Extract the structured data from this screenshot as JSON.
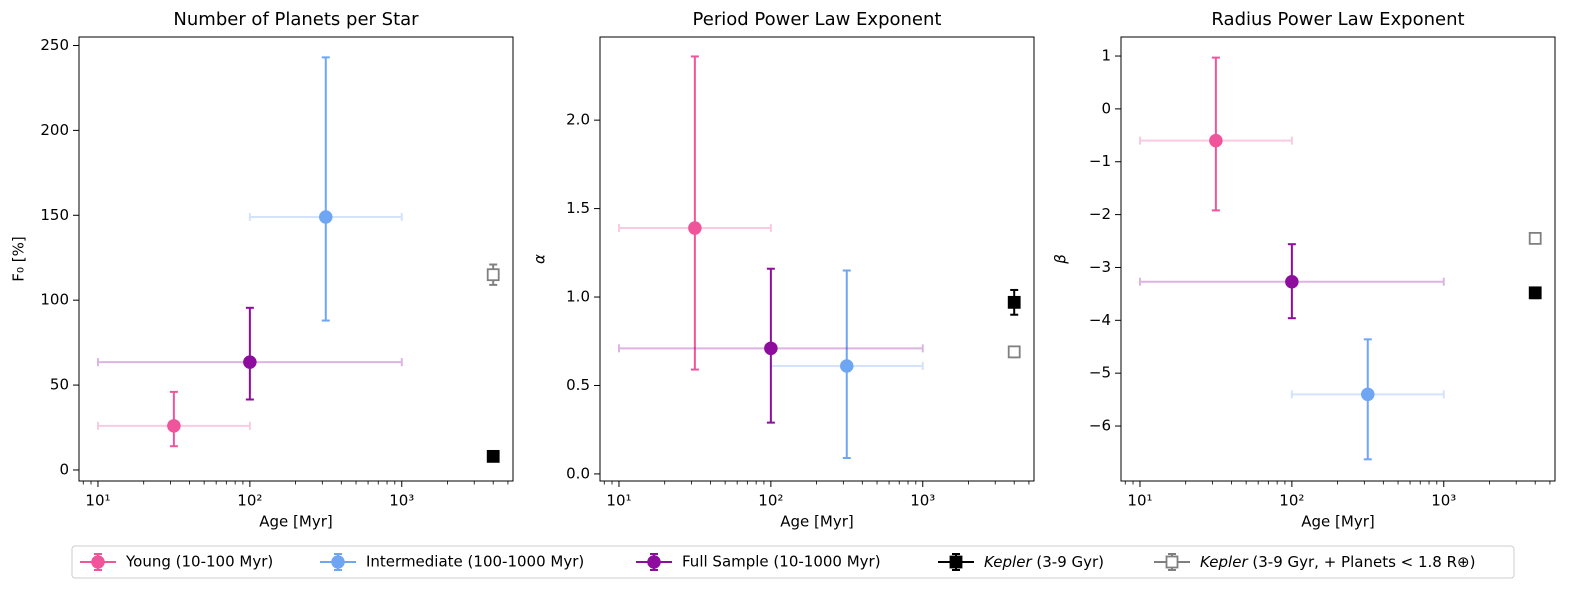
{
  "chart_data": [
    {
      "type": "errorbar",
      "title": "Number of Planets per Star",
      "xlabel": "Age [Myr]",
      "ylabel": "F₀ [%]",
      "xscale": "log",
      "xlim": [
        7.5,
        5400
      ],
      "ylim": [
        -6.5,
        255
      ],
      "xticks": [
        {
          "value": 10,
          "label": "10¹"
        },
        {
          "value": 100,
          "label": "10²"
        },
        {
          "value": 1000,
          "label": "10³"
        }
      ],
      "yticks": [
        0,
        50,
        100,
        150,
        200,
        250
      ],
      "xerr_opacity": 0.3,
      "series": [
        {
          "name": "Young (10-100 Myr)",
          "color": "#f0549b",
          "marker": "circle",
          "filled": true,
          "x": [
            31.6
          ],
          "values": [
            26
          ],
          "yerr_minus": [
            12
          ],
          "yerr_plus": [
            20
          ],
          "xerr_minus": [
            21.6
          ],
          "xerr_plus": [
            68.4
          ]
        },
        {
          "name": "Intermediate (100-1000 Myr)",
          "color": "#6fa6f4",
          "marker": "circle",
          "filled": true,
          "x": [
            316
          ],
          "values": [
            149
          ],
          "yerr_minus": [
            61
          ],
          "yerr_plus": [
            94
          ],
          "xerr_minus": [
            216
          ],
          "xerr_plus": [
            684
          ]
        },
        {
          "name": "Full Sample (10-1000 Myr)",
          "color": "#8e0c9e",
          "marker": "circle",
          "filled": true,
          "x": [
            100
          ],
          "values": [
            63.5
          ],
          "yerr_minus": [
            22
          ],
          "yerr_plus": [
            32
          ],
          "xerr_minus": [
            90
          ],
          "xerr_plus": [
            900
          ]
        },
        {
          "name": "Kepler (3-9 Gyr)",
          "color": "#000000",
          "marker": "square",
          "filled": true,
          "x": [
            4000
          ],
          "values": [
            8
          ],
          "yerr_minus": [
            1
          ],
          "yerr_plus": [
            1
          ]
        },
        {
          "name": "Kepler (3-9 Gyr, + Planets < 1.8 R⊕)",
          "color": "#808080",
          "marker": "square",
          "filled": false,
          "x": [
            4000
          ],
          "values": [
            115
          ],
          "yerr_minus": [
            6
          ],
          "yerr_plus": [
            6
          ]
        }
      ]
    },
    {
      "type": "errorbar",
      "title": "Period Power Law Exponent",
      "xlabel": "Age [Myr]",
      "ylabel": "α",
      "xscale": "log",
      "xlim": [
        7.5,
        5400
      ],
      "ylim": [
        -0.04,
        2.47
      ],
      "xticks": [
        {
          "value": 10,
          "label": "10¹"
        },
        {
          "value": 100,
          "label": "10²"
        },
        {
          "value": 1000,
          "label": "10³"
        }
      ],
      "yticks": [
        {
          "value": 0,
          "label": "0.0"
        },
        {
          "value": 0.5,
          "label": "0.5"
        },
        {
          "value": 1,
          "label": "1.0"
        },
        {
          "value": 1.5,
          "label": "1.5"
        },
        {
          "value": 2,
          "label": "2.0"
        }
      ],
      "xerr_opacity": 0.3,
      "series": [
        {
          "name": "Young (10-100 Myr)",
          "color": "#f0549b",
          "marker": "circle",
          "filled": true,
          "x": [
            31.6
          ],
          "values": [
            1.39
          ],
          "yerr_minus": [
            0.8
          ],
          "yerr_plus": [
            0.97
          ],
          "xerr_minus": [
            21.6
          ],
          "xerr_plus": [
            68.4
          ]
        },
        {
          "name": "Intermediate (100-1000 Myr)",
          "color": "#6fa6f4",
          "marker": "circle",
          "filled": true,
          "x": [
            316
          ],
          "values": [
            0.61
          ],
          "yerr_minus": [
            0.52
          ],
          "yerr_plus": [
            0.54
          ],
          "xerr_minus": [
            216
          ],
          "xerr_plus": [
            684
          ]
        },
        {
          "name": "Full Sample (10-1000 Myr)",
          "color": "#8e0c9e",
          "marker": "circle",
          "filled": true,
          "x": [
            100
          ],
          "values": [
            0.71
          ],
          "yerr_minus": [
            0.42
          ],
          "yerr_plus": [
            0.45
          ],
          "xerr_minus": [
            90
          ],
          "xerr_plus": [
            900
          ]
        },
        {
          "name": "Kepler (3-9 Gyr)",
          "color": "#000000",
          "marker": "square",
          "filled": true,
          "x": [
            4000
          ],
          "values": [
            0.97
          ],
          "yerr_minus": [
            0.07
          ],
          "yerr_plus": [
            0.07
          ]
        },
        {
          "name": "Kepler (3-9 Gyr, + Planets < 1.8 R⊕)",
          "color": "#808080",
          "marker": "square",
          "filled": false,
          "x": [
            4000
          ],
          "values": [
            0.69
          ],
          "yerr_minus": [
            0.03
          ],
          "yerr_plus": [
            0.03
          ]
        }
      ]
    },
    {
      "type": "errorbar",
      "title": "Radius Power Law Exponent",
      "xlabel": "Age [Myr]",
      "ylabel": "β",
      "xscale": "log",
      "xlim": [
        7.5,
        5400
      ],
      "ylim": [
        -7.04,
        1.36
      ],
      "xticks": [
        {
          "value": 10,
          "label": "10¹"
        },
        {
          "value": 100,
          "label": "10²"
        },
        {
          "value": 1000,
          "label": "10³"
        }
      ],
      "yticks": [
        {
          "value": -6,
          "label": "−6"
        },
        {
          "value": -5,
          "label": "−5"
        },
        {
          "value": -4,
          "label": "−4"
        },
        {
          "value": -3,
          "label": "−3"
        },
        {
          "value": -2,
          "label": "−2"
        },
        {
          "value": -1,
          "label": "−1"
        },
        0,
        1
      ],
      "xerr_opacity": 0.3,
      "series": [
        {
          "name": "Young (10-100 Myr)",
          "color": "#f0549b",
          "marker": "circle",
          "filled": true,
          "x": [
            31.6
          ],
          "values": [
            -0.6
          ],
          "yerr_minus": [
            1.32
          ],
          "yerr_plus": [
            1.57
          ],
          "xerr_minus": [
            21.6
          ],
          "xerr_plus": [
            68.4
          ]
        },
        {
          "name": "Intermediate (100-1000 Myr)",
          "color": "#6fa6f4",
          "marker": "circle",
          "filled": true,
          "x": [
            316
          ],
          "values": [
            -5.4
          ],
          "yerr_minus": [
            1.23
          ],
          "yerr_plus": [
            1.04
          ],
          "xerr_minus": [
            216
          ],
          "xerr_plus": [
            684
          ]
        },
        {
          "name": "Full Sample (10-1000 Myr)",
          "color": "#8e0c9e",
          "marker": "circle",
          "filled": true,
          "x": [
            100
          ],
          "values": [
            -3.27
          ],
          "yerr_minus": [
            0.69
          ],
          "yerr_plus": [
            0.71
          ],
          "xerr_minus": [
            90
          ],
          "xerr_plus": [
            900
          ]
        },
        {
          "name": "Kepler (3-9 Gyr)",
          "color": "#000000",
          "marker": "square",
          "filled": true,
          "x": [
            4000
          ],
          "values": [
            -3.48
          ],
          "yerr_minus": [
            0.1
          ],
          "yerr_plus": [
            0.1
          ]
        },
        {
          "name": "Kepler (3-9 Gyr, + Planets < 1.8 R⊕)",
          "color": "#808080",
          "marker": "square",
          "filled": false,
          "x": [
            4000
          ],
          "values": [
            -2.45
          ],
          "yerr_minus": [
            0.05
          ],
          "yerr_plus": [
            0.05
          ]
        }
      ]
    }
  ]
}
